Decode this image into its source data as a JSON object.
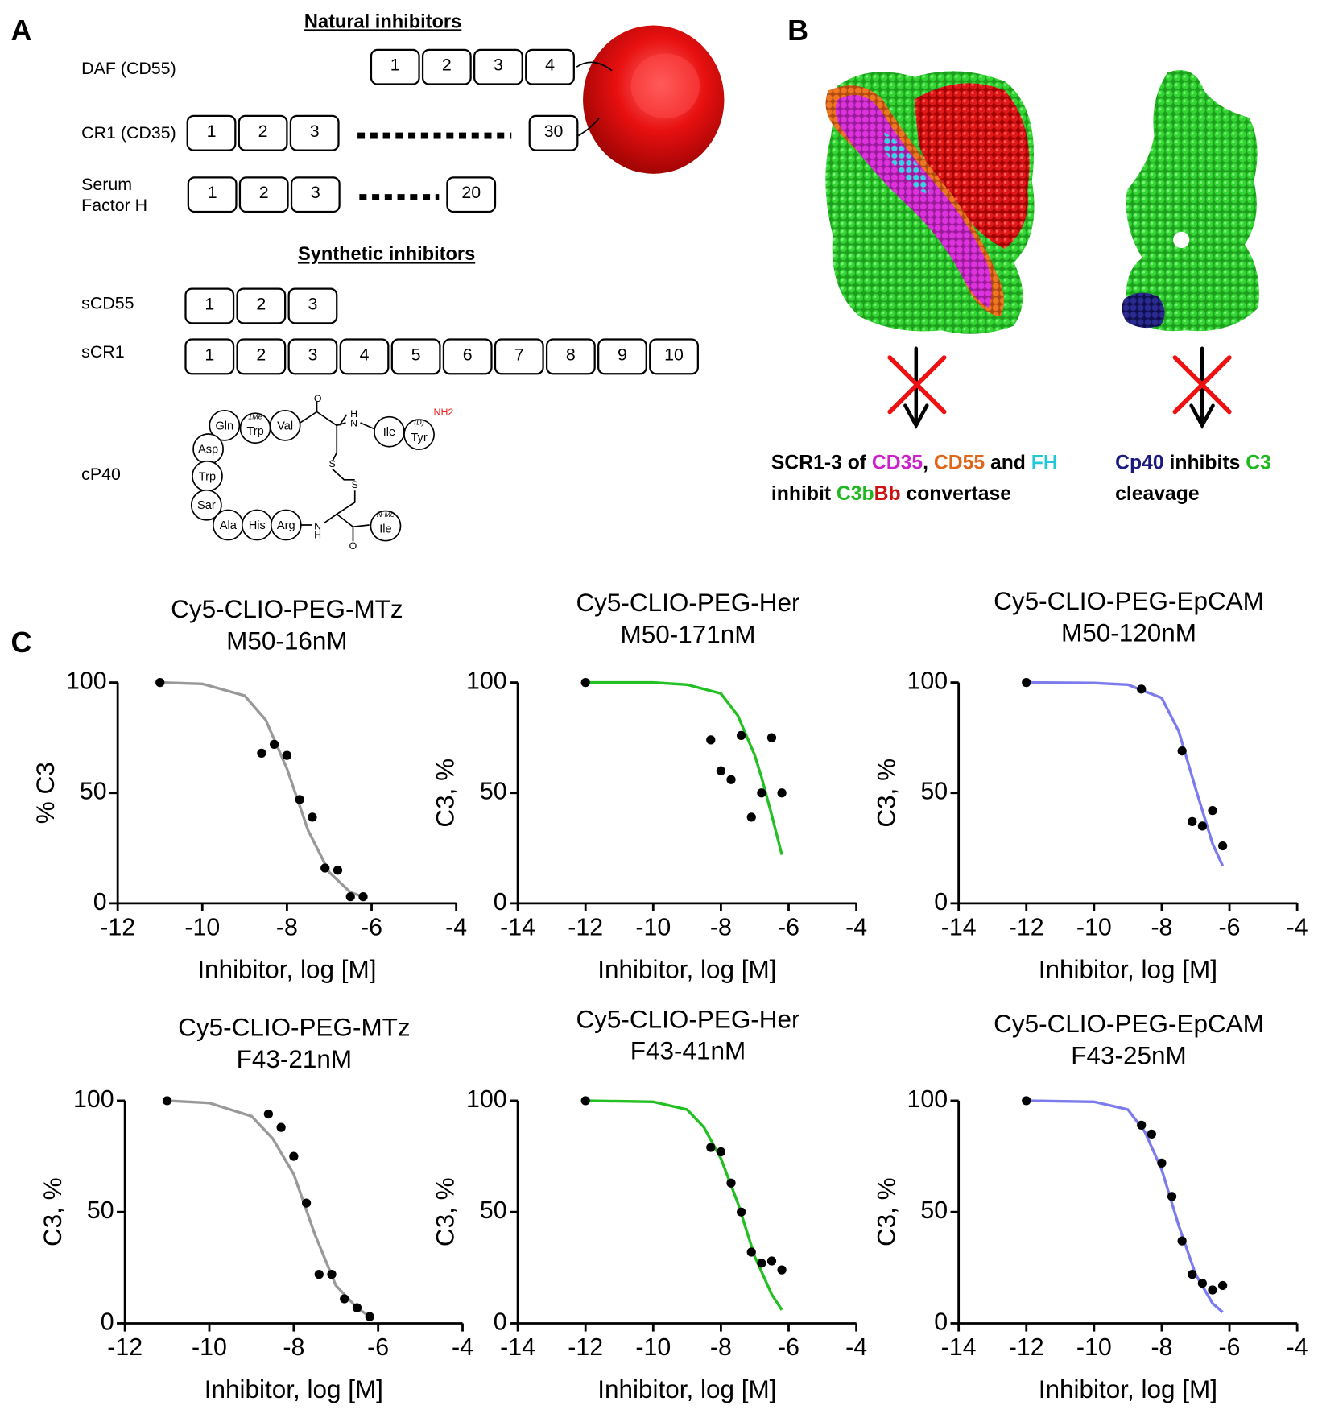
{
  "panel_a": {
    "label": "A",
    "natural_title": "Natural inhibitors",
    "synthetic_title": "Synthetic inhibitors",
    "natural": [
      {
        "name": [
          "DAF (CD55)"
        ],
        "domains": [
          1,
          2,
          3,
          4
        ]
      },
      {
        "name": [
          "CR1 (CD35)"
        ],
        "domains": [
          1,
          2,
          3,
          30
        ]
      },
      {
        "name": [
          "Serum",
          "Factor H"
        ],
        "domains": [
          1,
          2,
          3,
          20
        ]
      }
    ],
    "synthetic": [
      {
        "name": [
          "sCD55"
        ],
        "domains": [
          1,
          2,
          3
        ]
      },
      {
        "name": [
          "sCR1"
        ],
        "domains": [
          1,
          2,
          3,
          4,
          5,
          6,
          7,
          8,
          9,
          10
        ]
      }
    ],
    "cp40": {
      "name": "cP40",
      "residues": [
        "Gln",
        "Trp",
        "Val",
        "Ile",
        "Tyr",
        "Asp",
        "Trp",
        "Sar",
        "Ala",
        "His",
        "Arg",
        "Ile"
      ],
      "modifiers": [
        "1Me",
        "(D)",
        "N-Me"
      ],
      "atoms": [
        "O",
        "H",
        "N",
        "S",
        "S",
        "N",
        "H",
        "O",
        "NH2"
      ]
    }
  },
  "panel_b": {
    "label": "B",
    "left_caption": [
      [
        {
          "text": "SCR1-3 of ",
          "color": "#000000"
        },
        {
          "text": "CD35",
          "color": "#cc22cc"
        },
        {
          "text": ", ",
          "color": "#000000"
        },
        {
          "text": "CD55",
          "color": "#e0661a"
        },
        {
          "text": " and ",
          "color": "#000000"
        },
        {
          "text": "FH",
          "color": "#22c8d8"
        }
      ],
      [
        {
          "text": "inhibit ",
          "color": "#000000"
        },
        {
          "text": "C3b",
          "color": "#1fb81f"
        },
        {
          "text": "Bb",
          "color": "#cc1111"
        },
        {
          "text": " convertase",
          "color": "#000000"
        }
      ]
    ],
    "right_caption": [
      [
        {
          "text": "Cp40",
          "color": "#1a1a80"
        },
        {
          "text": " inhibits ",
          "color": "#000000"
        },
        {
          "text": "C3",
          "color": "#1fb81f"
        }
      ],
      [
        {
          "text": "cleavage",
          "color": "#000000"
        }
      ]
    ]
  },
  "panel_c": {
    "label": "C"
  },
  "chart_data": [
    {
      "type": "scatter",
      "title": "Cy5-CLIO-PEG-MTz",
      "subtitle": "M50-16nM",
      "xlabel": "Inhibitor, log [M]",
      "ylabel": "% C3",
      "xlim": [
        -12,
        -4
      ],
      "xticks": [
        -12,
        -10,
        -8,
        -6,
        -4
      ],
      "ylim": [
        0,
        100
      ],
      "yticks": [
        0,
        50,
        100
      ],
      "points": {
        "color": "#000000",
        "x": [
          -11,
          -8.6,
          -8.3,
          -8,
          -7.7,
          -7.4,
          -7.1,
          -6.8,
          -6.5,
          -6.2
        ],
        "values": [
          100,
          68,
          72,
          67,
          47,
          39,
          16,
          15,
          3,
          3
        ]
      },
      "fit": {
        "color": "#999999",
        "x": [
          -11,
          -10,
          -9,
          -8.5,
          -8,
          -7.5,
          -7,
          -6.5,
          -6.2
        ],
        "values": [
          100,
          99.4,
          94,
          83,
          61,
          33,
          14,
          5,
          3
        ]
      }
    },
    {
      "type": "scatter",
      "title": "Cy5-CLIO-PEG-Her",
      "subtitle": "M50-171nM",
      "xlabel": "Inhibitor, log [M]",
      "ylabel": "C3, %",
      "xlim": [
        -14,
        -4
      ],
      "xticks": [
        -14,
        -12,
        -10,
        -8,
        -6,
        -4
      ],
      "ylim": [
        0,
        100
      ],
      "yticks": [
        0,
        50,
        100
      ],
      "points": {
        "color": "#000000",
        "x": [
          -12,
          -8.3,
          -8,
          -7.7,
          -7.4,
          -7.1,
          -6.8,
          -6.5,
          -6.2
        ],
        "values": [
          100,
          74,
          60,
          56,
          76,
          39,
          50,
          75,
          50
        ]
      },
      "fit": {
        "color": "#22c022",
        "x": [
          -12,
          -10,
          -9,
          -8,
          -7.5,
          -7,
          -6.8,
          -6.5,
          -6.2
        ],
        "values": [
          100,
          100,
          99,
          95,
          85,
          67,
          57,
          40,
          22
        ]
      }
    },
    {
      "type": "scatter",
      "title": "Cy5-CLIO-PEG-EpCAM",
      "subtitle": "M50-120nM",
      "xlabel": "Inhibitor, log [M]",
      "ylabel": "C3, %",
      "xlim": [
        -14,
        -4
      ],
      "xticks": [
        -14,
        -12,
        -10,
        -8,
        -6,
        -4
      ],
      "ylim": [
        0,
        100
      ],
      "yticks": [
        0,
        50,
        100
      ],
      "points": {
        "color": "#000000",
        "x": [
          -12,
          -8.6,
          -7.4,
          -7.1,
          -6.8,
          -6.5,
          -6.2
        ],
        "values": [
          100,
          97,
          69,
          37,
          35,
          42,
          26
        ]
      },
      "fit": {
        "color": "#7b7bee",
        "x": [
          -12,
          -10,
          -9,
          -8,
          -7.5,
          -7,
          -6.5,
          -6.2
        ],
        "values": [
          100,
          99.8,
          99,
          93,
          78,
          52,
          27,
          17
        ]
      }
    },
    {
      "type": "scatter",
      "title": "Cy5-CLIO-PEG-MTz",
      "subtitle": "F43-21nM",
      "xlabel": "Inhibitor, log [M]",
      "ylabel": "C3, %",
      "xlim": [
        -12,
        -4
      ],
      "xticks": [
        -12,
        -10,
        -8,
        -6,
        -4
      ],
      "ylim": [
        0,
        100
      ],
      "yticks": [
        0,
        50,
        100
      ],
      "points": {
        "color": "#000000",
        "x": [
          -11,
          -8.6,
          -8.3,
          -8,
          -7.7,
          -7.4,
          -7.1,
          -6.8,
          -6.5,
          -6.2
        ],
        "values": [
          100,
          94,
          88,
          75,
          54,
          22,
          22,
          11,
          7,
          3
        ]
      },
      "fit": {
        "color": "#999999",
        "x": [
          -11,
          -10,
          -9,
          -8.5,
          -8,
          -7.5,
          -7,
          -6.5,
          -6.2
        ],
        "values": [
          100,
          99,
          93,
          83,
          67,
          40,
          17,
          7,
          3
        ]
      }
    },
    {
      "type": "scatter",
      "title": "Cy5-CLIO-PEG-Her",
      "subtitle": "F43-41nM",
      "xlabel": "Inhibitor, log [M]",
      "ylabel": "C3, %",
      "xlim": [
        -14,
        -4
      ],
      "xticks": [
        -14,
        -12,
        -10,
        -8,
        -6,
        -4
      ],
      "ylim": [
        0,
        100
      ],
      "yticks": [
        0,
        50,
        100
      ],
      "points": {
        "color": "#000000",
        "x": [
          -12,
          -8.3,
          -8,
          -7.7,
          -7.4,
          -7.1,
          -6.8,
          -6.5,
          -6.2
        ],
        "values": [
          100,
          79,
          77,
          63,
          50,
          32,
          27,
          28,
          24
        ]
      },
      "fit": {
        "color": "#22c022",
        "x": [
          -12,
          -10,
          -9,
          -8.5,
          -8,
          -7.5,
          -7,
          -6.5,
          -6.2
        ],
        "values": [
          100,
          99.5,
          96,
          88,
          74,
          54,
          30,
          13,
          6
        ]
      }
    },
    {
      "type": "scatter",
      "title": "Cy5-CLIO-PEG-EpCAM",
      "subtitle": "F43-25nM",
      "xlabel": "Inhibitor, log [M]",
      "ylabel": "C3, %",
      "xlim": [
        -14,
        -4
      ],
      "xticks": [
        -14,
        -12,
        -10,
        -8,
        -6,
        -4
      ],
      "ylim": [
        0,
        100
      ],
      "yticks": [
        0,
        50,
        100
      ],
      "points": {
        "color": "#000000",
        "x": [
          -12,
          -8.6,
          -8.3,
          -8,
          -7.7,
          -7.4,
          -7.1,
          -6.8,
          -6.5,
          -6.2
        ],
        "values": [
          100,
          89,
          85,
          72,
          57,
          37,
          22,
          18,
          15,
          17
        ]
      },
      "fit": {
        "color": "#7b7bee",
        "x": [
          -12,
          -10,
          -9,
          -8.5,
          -8,
          -7.5,
          -7,
          -6.5,
          -6.2
        ],
        "values": [
          100,
          99.5,
          96,
          86,
          69,
          44,
          22,
          9,
          5
        ]
      }
    }
  ]
}
